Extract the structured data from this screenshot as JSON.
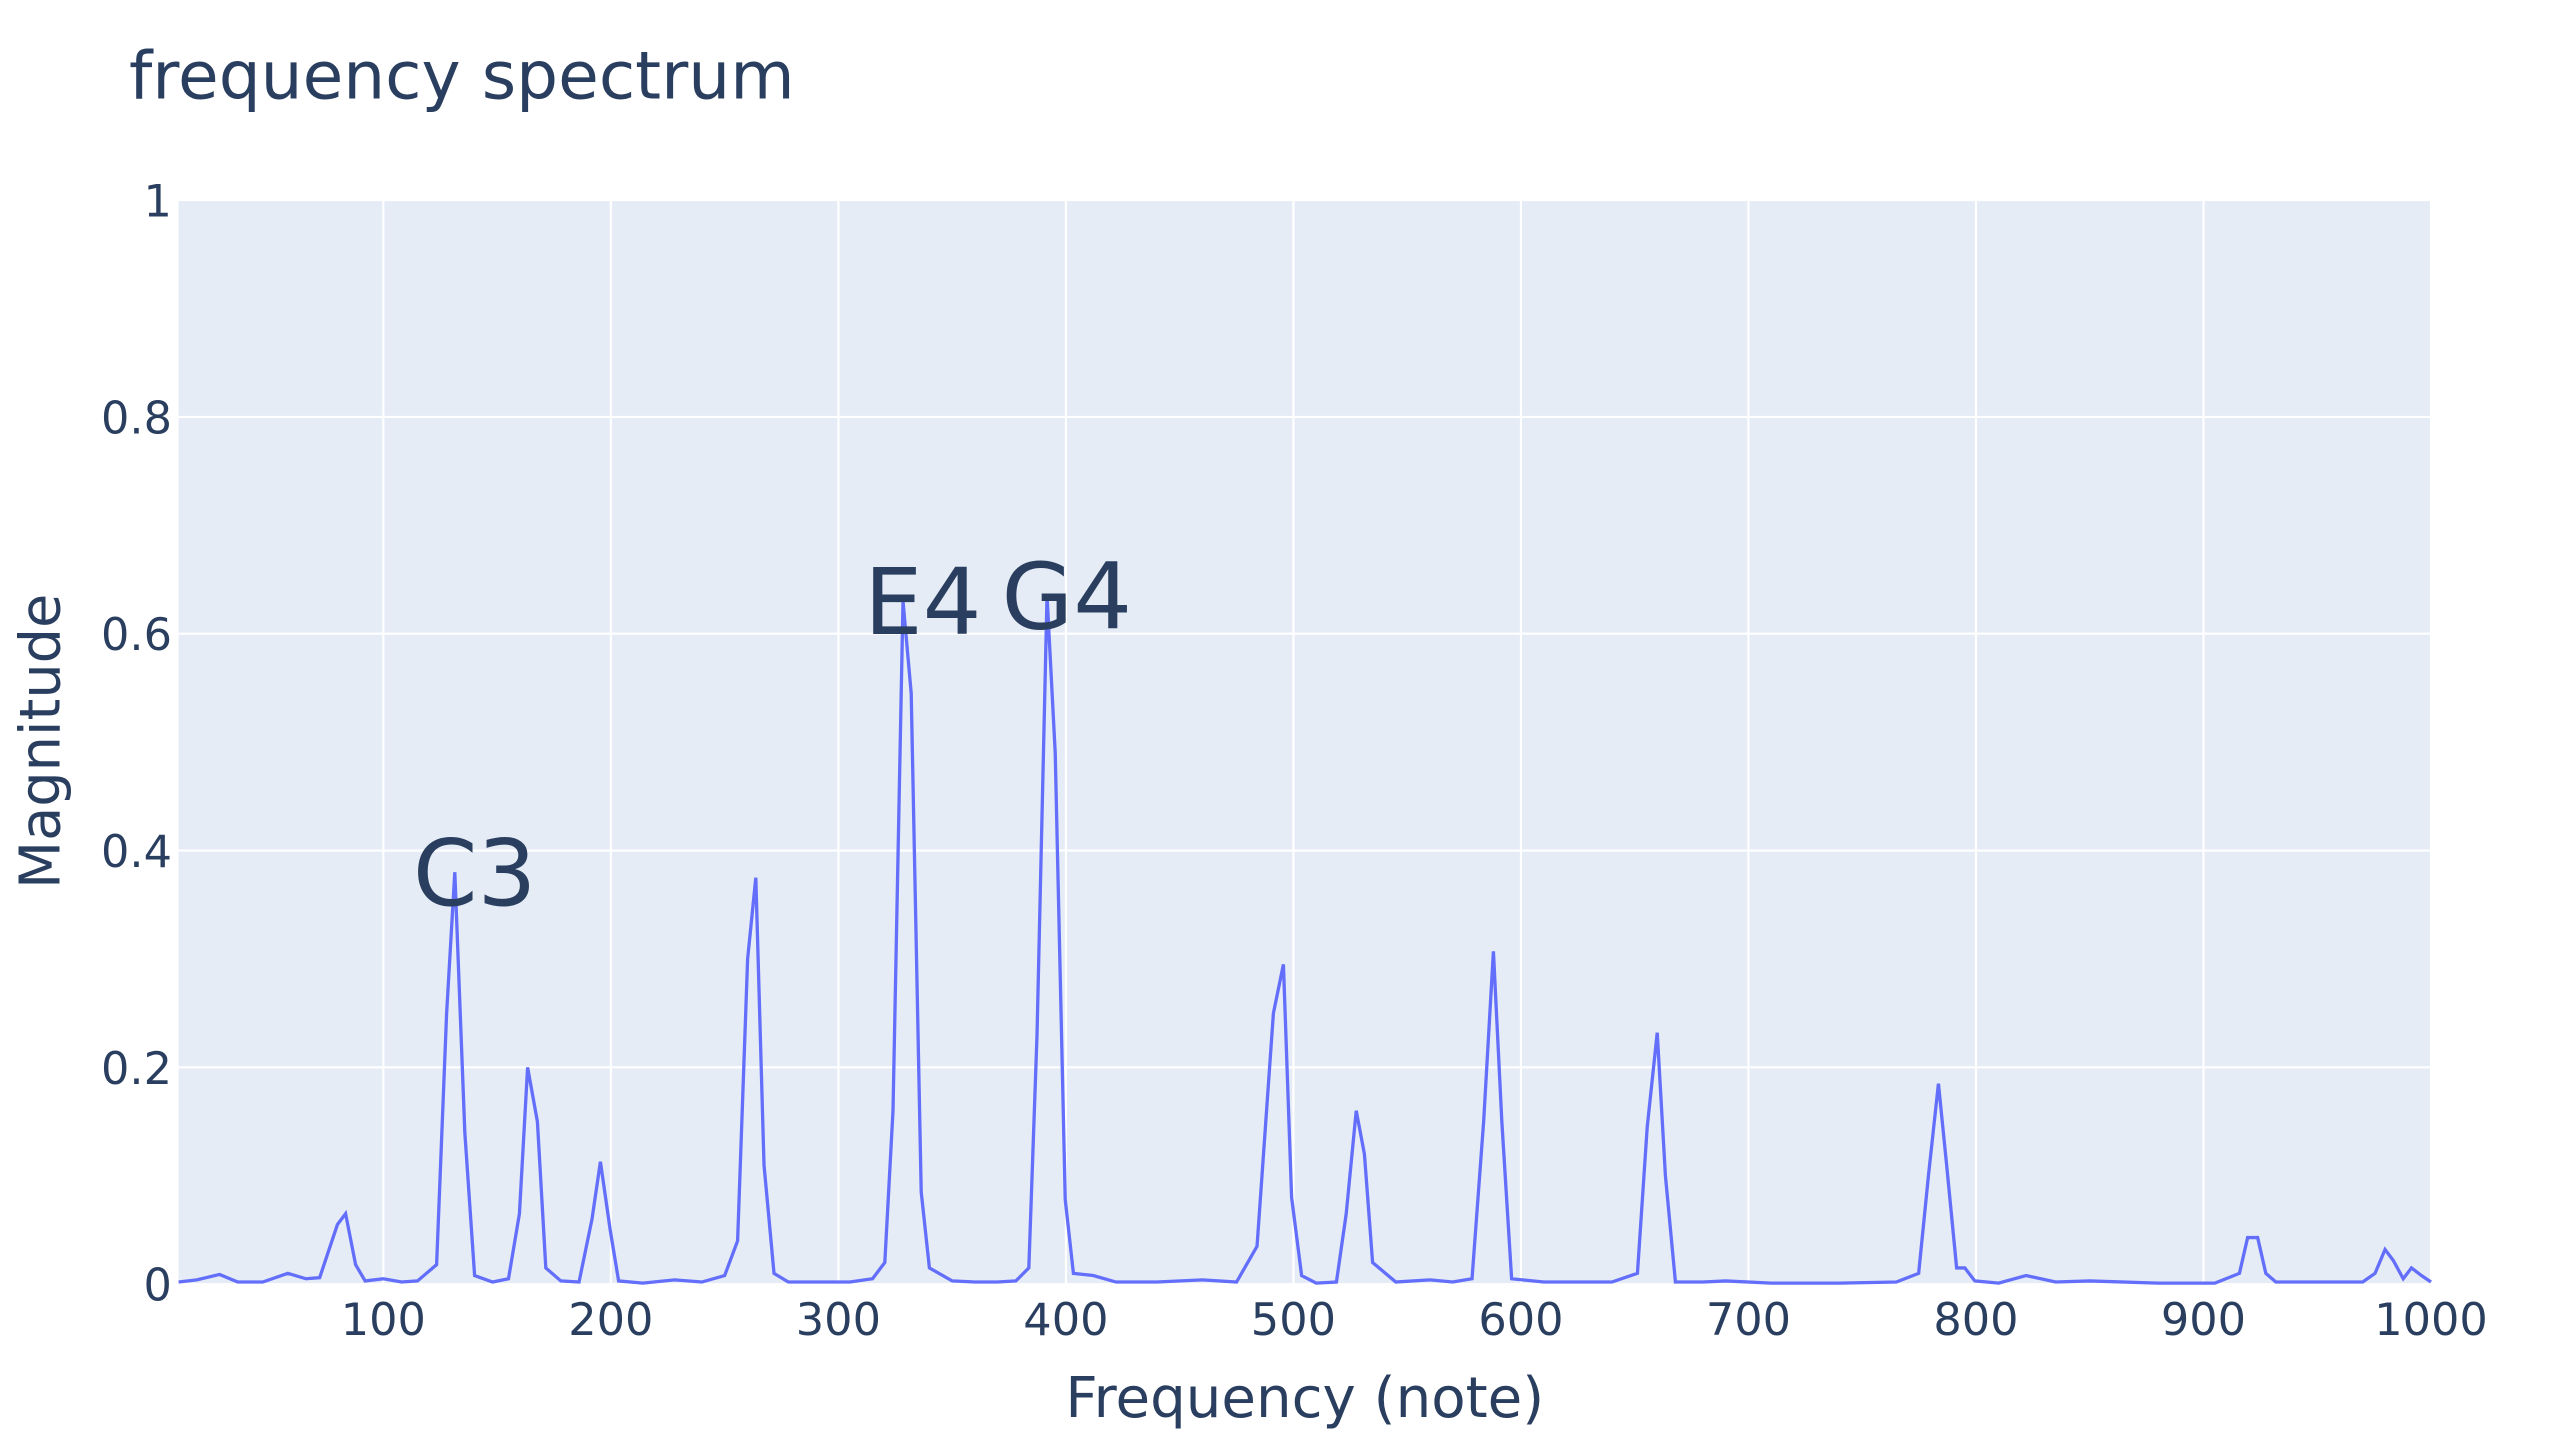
{
  "chart_data": {
    "type": "line",
    "title": "frequency spectrum",
    "x_label": "Frequency (note)",
    "y_label": "Magnitude",
    "xlim": [
      10,
      1000
    ],
    "ylim": [
      0,
      1
    ],
    "xticks": [
      100,
      200,
      300,
      400,
      500,
      600,
      700,
      800,
      900,
      1000
    ],
    "yticks": [
      0,
      0.2,
      0.4,
      0.6,
      0.8,
      1
    ],
    "grid": true,
    "series": [
      {
        "name": "spectrum",
        "color": "#636efa",
        "x": [
          10,
          18,
          28,
          36,
          47,
          58,
          66,
          72,
          79.8,
          83.4,
          87.8,
          92,
          100,
          108,
          115,
          123.4,
          127.8,
          131.4,
          135.8,
          140.1,
          148,
          155,
          159.8,
          163.4,
          167.7,
          171.4,
          178,
          186,
          191.7,
          195.4,
          199.7,
          203.4,
          214,
          228,
          240,
          250,
          255.7,
          260.1,
          263.7,
          267.3,
          271.7,
          278,
          290,
          305,
          315,
          320.4,
          324.0,
          328.4,
          332.0,
          336.4,
          340.0,
          350,
          360,
          370,
          378,
          383.7,
          387.3,
          391.7,
          395.3,
          399.7,
          403.3,
          412,
          422,
          440,
          460,
          475,
          484.0,
          491.2,
          495.6,
          499.2,
          503.6,
          510,
          518.9,
          523.2,
          527.6,
          531.2,
          534.8,
          545,
          560,
          570,
          578.5,
          583.6,
          587.9,
          591.6,
          595.9,
          610,
          625,
          640,
          651.2,
          655.5,
          659.9,
          663.5,
          667.9,
          680,
          690,
          710,
          740,
          765,
          774.8,
          779.1,
          783.5,
          787.1,
          791.5,
          795.1,
          799.5,
          810,
          822,
          835,
          850,
          880,
          905,
          915.8,
          919.4,
          923.8,
          927.4,
          931.8,
          950,
          970,
          975.4,
          979.8,
          983.4,
          987.8,
          991.4,
          995.8,
          1000
        ],
        "values": [
          0.002,
          0.004,
          0.009,
          0.002,
          0.002,
          0.01,
          0.005,
          0.006,
          0.055,
          0.065,
          0.018,
          0.003,
          0.005,
          0.002,
          0.003,
          0.018,
          0.25,
          0.38,
          0.14,
          0.008,
          0.002,
          0.005,
          0.065,
          0.2,
          0.15,
          0.015,
          0.003,
          0.002,
          0.06,
          0.113,
          0.05,
          0.003,
          0.001,
          0.004,
          0.002,
          0.008,
          0.04,
          0.3,
          0.375,
          0.11,
          0.01,
          0.002,
          0.002,
          0.002,
          0.005,
          0.02,
          0.16,
          0.63,
          0.545,
          0.085,
          0.015,
          0.003,
          0.002,
          0.002,
          0.003,
          0.015,
          0.23,
          0.635,
          0.49,
          0.078,
          0.01,
          0.008,
          0.002,
          0.002,
          0.004,
          0.002,
          0.035,
          0.25,
          0.295,
          0.08,
          0.008,
          0.001,
          0.002,
          0.065,
          0.16,
          0.12,
          0.02,
          0.002,
          0.004,
          0.002,
          0.005,
          0.15,
          0.307,
          0.15,
          0.005,
          0.002,
          0.002,
          0.002,
          0.01,
          0.145,
          0.232,
          0.1,
          0.002,
          0.002,
          0.003,
          0.001,
          0.001,
          0.002,
          0.01,
          0.1,
          0.185,
          0.11,
          0.015,
          0.015,
          0.003,
          0.001,
          0.008,
          0.002,
          0.003,
          0.001,
          0.001,
          0.01,
          0.043,
          0.043,
          0.01,
          0.002,
          0.002,
          0.002,
          0.01,
          0.032,
          0.022,
          0.005,
          0.015,
          0.008,
          0.002
        ]
      }
    ],
    "annotations": [
      {
        "text": "C3",
        "x": 131.4,
        "y": 0.38
      },
      {
        "text": "E4",
        "x": 328.4,
        "y": 0.63
      },
      {
        "text": "G4",
        "x": 391.7,
        "y": 0.635
      }
    ]
  }
}
